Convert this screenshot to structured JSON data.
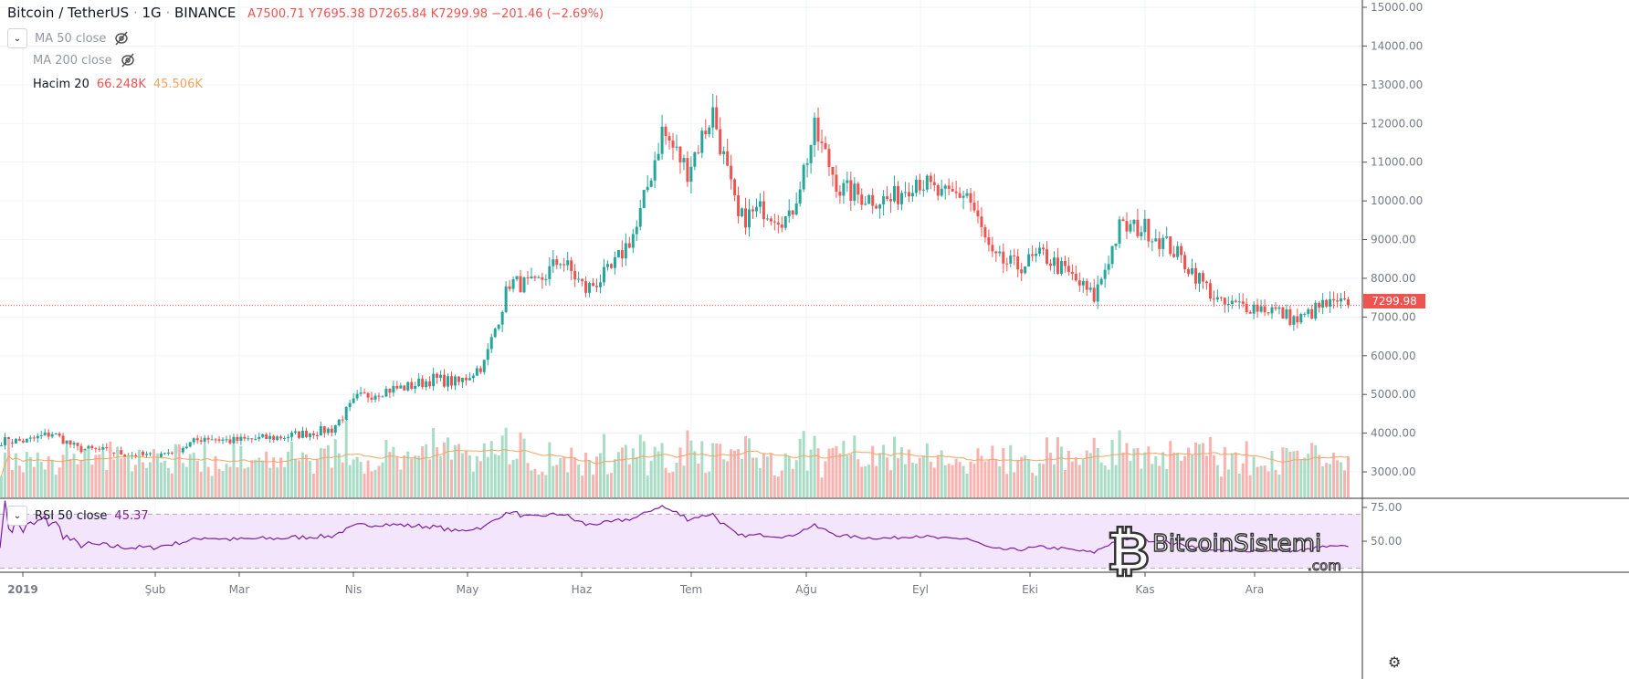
{
  "header": {
    "symbol": "Bitcoin / TetherUS",
    "interval": "1G",
    "exchange": "BINANCE",
    "open": "A7500.71",
    "high": "Y7695.38",
    "low": "D7265.84",
    "close": "K7299.98",
    "change": "−201.46 (−2.69%)"
  },
  "indicators": [
    {
      "label": "MA 50 close",
      "hidden": true
    },
    {
      "label": "MA 200 close",
      "hidden": true
    },
    {
      "label": "Hacim 20",
      "value1": "66.248K",
      "value2": "45.506K"
    }
  ],
  "rsi": {
    "label": "RSI 50 close",
    "value": "45.37"
  },
  "last_price_tag": "7299.98",
  "watermark": "BitcoinSistemi .com",
  "colors": {
    "up": "#26a69a",
    "down": "#ef5350",
    "vol_up": "#a8dcc5",
    "vol_down": "#f8b3b1",
    "vol_ma": "#f4a460",
    "rsi_line": "#7b1fa2",
    "rsi_fill": "#f3e5fc"
  },
  "chart_data": {
    "type": "candlestick",
    "title": "Bitcoin / TetherUS · 1G · BINANCE",
    "x_ticks": [
      "2019",
      "Şub",
      "Mar",
      "Nis",
      "May",
      "Haz",
      "Tem",
      "Ağu",
      "Eyl",
      "Eki",
      "Kas",
      "Ara"
    ],
    "y_ticks": [
      "15000.00",
      "14000.00",
      "13000.00",
      "12000.00",
      "11000.00",
      "10000.00",
      "9000.00",
      "8000.00",
      "7000.00",
      "6000.00",
      "5000.00",
      "4000.00",
      "3000.00"
    ],
    "ylim": [
      2700,
      15000
    ],
    "rsi_ticks": [
      "75.00",
      "50.00"
    ],
    "rsi_bands": [
      70,
      30
    ],
    "weekly_closes": [
      3800,
      3800,
      4000,
      3600,
      3550,
      3450,
      3400,
      3600,
      3900,
      3800,
      3850,
      3900,
      4000,
      4100,
      4900,
      5100,
      5200,
      5400,
      5300,
      5800,
      7900,
      7800,
      8500,
      7700,
      8200,
      9300,
      11800,
      10800,
      12300,
      9500,
      9800,
      9500,
      11800,
      10300,
      10100,
      10000,
      10600,
      10100,
      10200,
      8500,
      8300,
      8600,
      8100,
      7500,
      9300,
      9300,
      8800,
      8100,
      7300,
      7300,
      7200,
      6900,
      7300,
      7300
    ],
    "last_close": 7299.98
  }
}
